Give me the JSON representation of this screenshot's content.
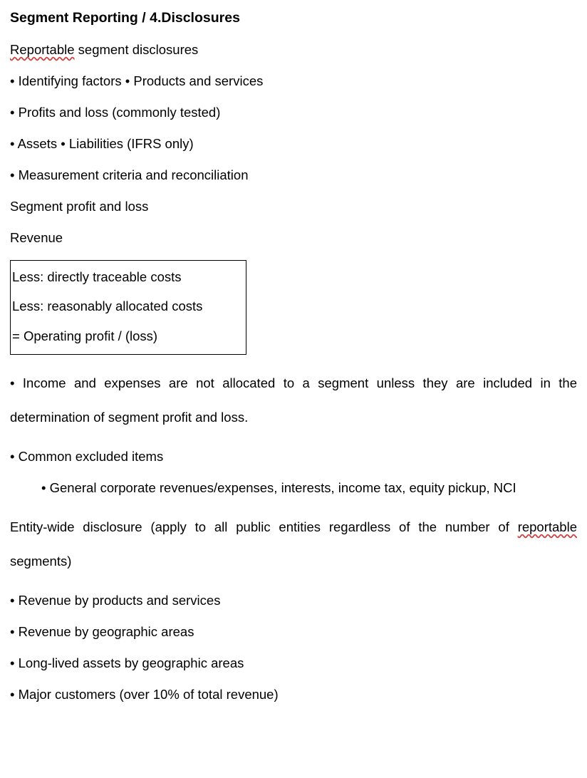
{
  "heading": "Segment Reporting / 4.Disclosures",
  "line_reportable_pre": "Reportable",
  "line_reportable_post": " segment disclosures",
  "bullets_top": {
    "b1a": "•  Identifying factors  ",
    "b1b": "•  Products and services",
    "b2": "•  Profits and loss (commonly tested)",
    "b3a": "•  Assets  ",
    "b3b": "•  Liabilities (IFRS only)",
    "b4": "•  Measurement criteria and reconciliation"
  },
  "seg_pl": "Segment profit and loss",
  "revenue": "Revenue",
  "box": {
    "l1": "Less: directly traceable costs",
    "l2": " Less: reasonably allocated costs",
    "l3": "= Operating profit / (loss)"
  },
  "note_full": "•  Income and expenses are not allocated to a segment unless they are included in the determination of segment profit and loss.",
  "excluded_h": "•  Common excluded items",
  "excluded_sub": "•  General corporate revenues/expenses, interests, income tax, equity pickup, NCI",
  "entity_pre": "Entity-wide disclosure (apply to all public entities regardless of the number of ",
  "entity_spell": "reportable",
  "entity_post": " segments)",
  "bullets_bottom": {
    "e1": "•  Revenue by products and services",
    "e2": "•  Revenue by geographic areas",
    "e3": "•  Long-lived assets by geographic areas",
    "e4": "•  Major customers (over 10% of total revenue)"
  }
}
